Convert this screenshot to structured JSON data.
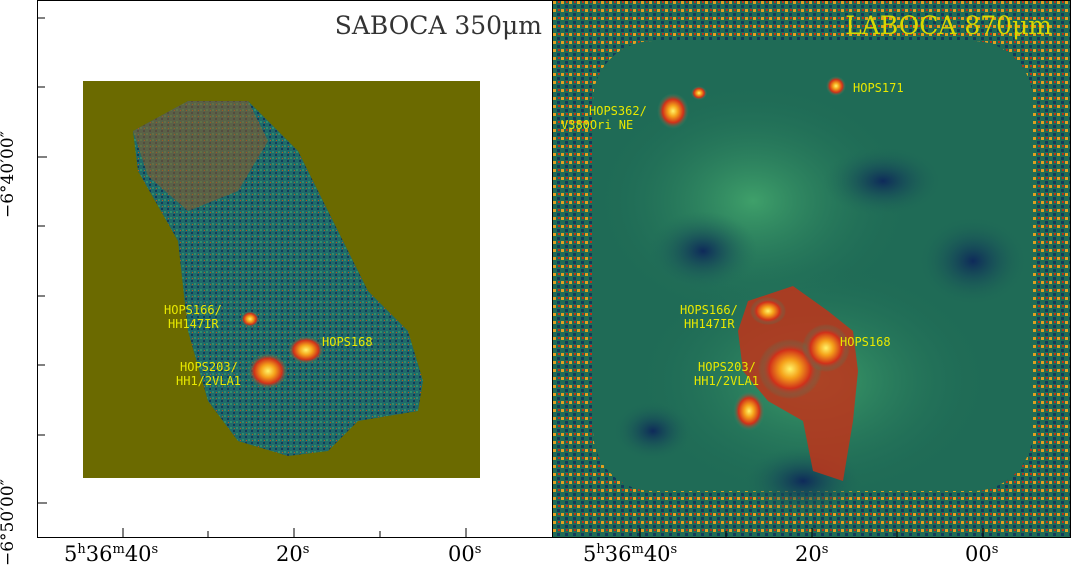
{
  "left_panel": {
    "title": "SABOCA 350μm",
    "labels": {
      "hops166_line1": "HOPS166/",
      "hops166_line2": "HH147IR",
      "hops168": "HOPS168",
      "hops203_line1": "HOPS203/",
      "hops203_line2": "HH1/2VLA1"
    }
  },
  "right_panel": {
    "title": "LABOCA 870μm",
    "labels": {
      "hops362_line1": "HOPS362/",
      "hops362_line2": "V380Ori NE",
      "hops171": "HOPS171",
      "hops166_line1": "HOPS166/",
      "hops166_line2": "HH147IR",
      "hops168": "HOPS168",
      "hops203_line1": "HOPS203/",
      "hops203_line2": "HH1/2VLA1"
    }
  },
  "axes": {
    "y_ticks": [
      "−6°40′00″",
      "−6°50′00″"
    ],
    "x_ticks_left": {
      "t1_h": "5",
      "t1_hsup": "h",
      "t1_m": "36",
      "t1_msup": "m",
      "t1_s": "40",
      "t1_ssup": "s",
      "t2": "20",
      "t2sup": "s",
      "t3": "00",
      "t3sup": "s"
    },
    "x_ticks_right": {
      "t1_h": "5",
      "t1_hsup": "h",
      "t1_m": "36",
      "t1_msup": "m",
      "t1_s": "40",
      "t1_ssup": "s",
      "t2": "20",
      "t2sup": "s",
      "t3": "00",
      "t3sup": "s"
    }
  },
  "colors": {
    "olive_background": "#6b6a00",
    "map_green": "#2e8a6a",
    "map_blue": "#123a5a",
    "peak_red": "#d43a14",
    "peak_yellow": "#ffe84a",
    "label_yellow": "#e8e800"
  }
}
